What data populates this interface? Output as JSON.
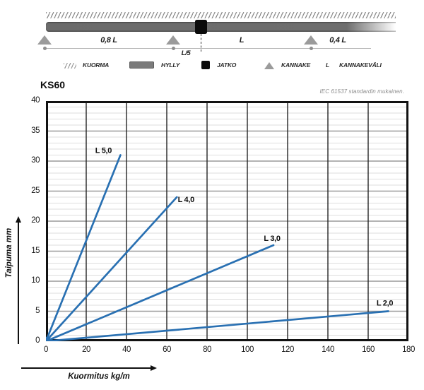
{
  "diagram": {
    "dim_labels": {
      "left_span": "0,8 L",
      "joint_offset": "L/5",
      "mid_span": "L",
      "right_span": "0,4 L"
    },
    "legend": {
      "kuorma": "KUORMA",
      "hylly": "HYLLY",
      "jatko": "JATKO",
      "kannake": "KANNAKE",
      "l_symbol": "L",
      "kannakevali": "KANNAKEVÄLI"
    }
  },
  "chart": {
    "title": "KS60",
    "note": "IEC 61537 standardin mukainen.",
    "xlabel": "Kuormitus kg/m",
    "ylabel": "Taipuma mm"
  },
  "chart_data": {
    "type": "line",
    "title": "KS60",
    "subtitle": "IEC 61537 standardin mukainen.",
    "xlabel": "Kuormitus kg/m",
    "ylabel": "Taipuma mm",
    "xlim": [
      0,
      180
    ],
    "ylim": [
      0,
      40
    ],
    "x_ticks": [
      0,
      20,
      40,
      60,
      80,
      100,
      120,
      140,
      160,
      180
    ],
    "y_ticks": [
      0,
      5,
      10,
      15,
      20,
      25,
      30,
      35,
      40
    ],
    "y_minor_step": 1,
    "grid": true,
    "legend_position": "inline-end-of-line",
    "line_color": "#2970b2",
    "series": [
      {
        "name": "L 5,0",
        "points": [
          [
            0,
            0
          ],
          [
            37,
            31
          ]
        ]
      },
      {
        "name": "L 4,0",
        "points": [
          [
            0,
            0
          ],
          [
            65,
            24
          ]
        ]
      },
      {
        "name": "L 3,0",
        "points": [
          [
            0,
            0
          ],
          [
            113,
            16
          ]
        ]
      },
      {
        "name": "L 2,0",
        "points": [
          [
            0,
            0
          ],
          [
            170,
            5
          ]
        ]
      }
    ]
  }
}
